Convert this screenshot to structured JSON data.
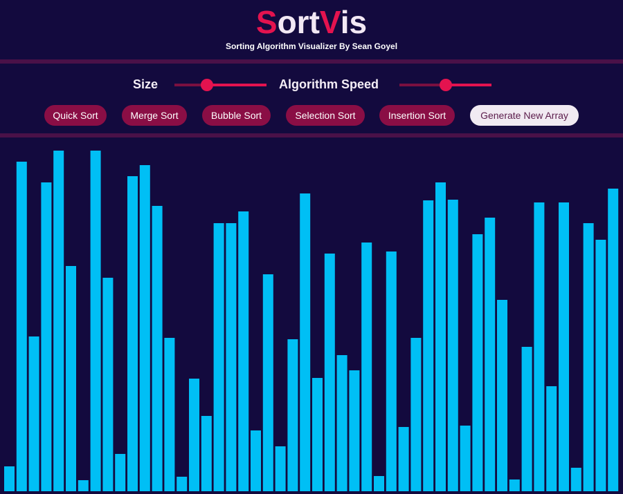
{
  "header": {
    "title_first_letter": "S",
    "title_part2": "ort",
    "title_accent_letter": "V",
    "title_part3": "is",
    "subtitle": "Sorting Algorithm Visualizer By Sean Goyel"
  },
  "controls": {
    "size_label": "Size",
    "size_value": 0.35,
    "speed_label": "Algorithm Speed",
    "speed_value": 0.5
  },
  "buttons": {
    "quick": "Quick Sort",
    "merge": "Merge Sort",
    "bubble": "Bubble Sort",
    "selection": "Selection Sort",
    "insertion": "Insertion Sort",
    "generate": "Generate New Array"
  },
  "colors": {
    "background": "#130a3e",
    "accent": "#e4134f",
    "bar": "#00bff5",
    "button": "#8a0e45"
  },
  "array": [
    36,
    477,
    224,
    447,
    493,
    326,
    16,
    493,
    309,
    54,
    456,
    472,
    413,
    222,
    21,
    163,
    109,
    388,
    388,
    405,
    88,
    314,
    65,
    220,
    431,
    164,
    344,
    197,
    175,
    360,
    22,
    347,
    93,
    222,
    421,
    447,
    422,
    95,
    372,
    396,
    277,
    17,
    209,
    418,
    152,
    418,
    34,
    388,
    364,
    438
  ]
}
